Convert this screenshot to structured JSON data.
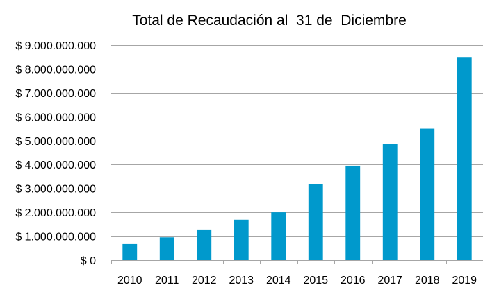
{
  "chart_data": {
    "type": "bar",
    "title": "Total de Recaudación al  31 de  Diciembre",
    "categories": [
      "2010",
      "2011",
      "2012",
      "2013",
      "2014",
      "2015",
      "2016",
      "2017",
      "2018",
      "2019"
    ],
    "values": [
      670000000,
      950000000,
      1280000000,
      1690000000,
      2000000000,
      3170000000,
      3950000000,
      4860000000,
      5500000000,
      8500000000
    ],
    "ylim": [
      0,
      9000000000
    ],
    "yticks": [
      0,
      1000000000,
      2000000000,
      3000000000,
      4000000000,
      5000000000,
      6000000000,
      7000000000,
      8000000000,
      9000000000
    ],
    "ytick_labels": [
      "$ 0",
      "$ 1.000.000.000",
      "$ 2.000.000.000",
      "$ 3.000.000.000",
      "$ 4.000.000.000",
      "$ 5.000.000.000",
      "$ 6.000.000.000",
      "$ 7.000.000.000",
      "$ 8.000.000.000",
      "$ 9.000.000.000"
    ],
    "grid": true,
    "legend": "none",
    "bar_color": "#0099CC",
    "grid_color": "#A6A6A6"
  }
}
